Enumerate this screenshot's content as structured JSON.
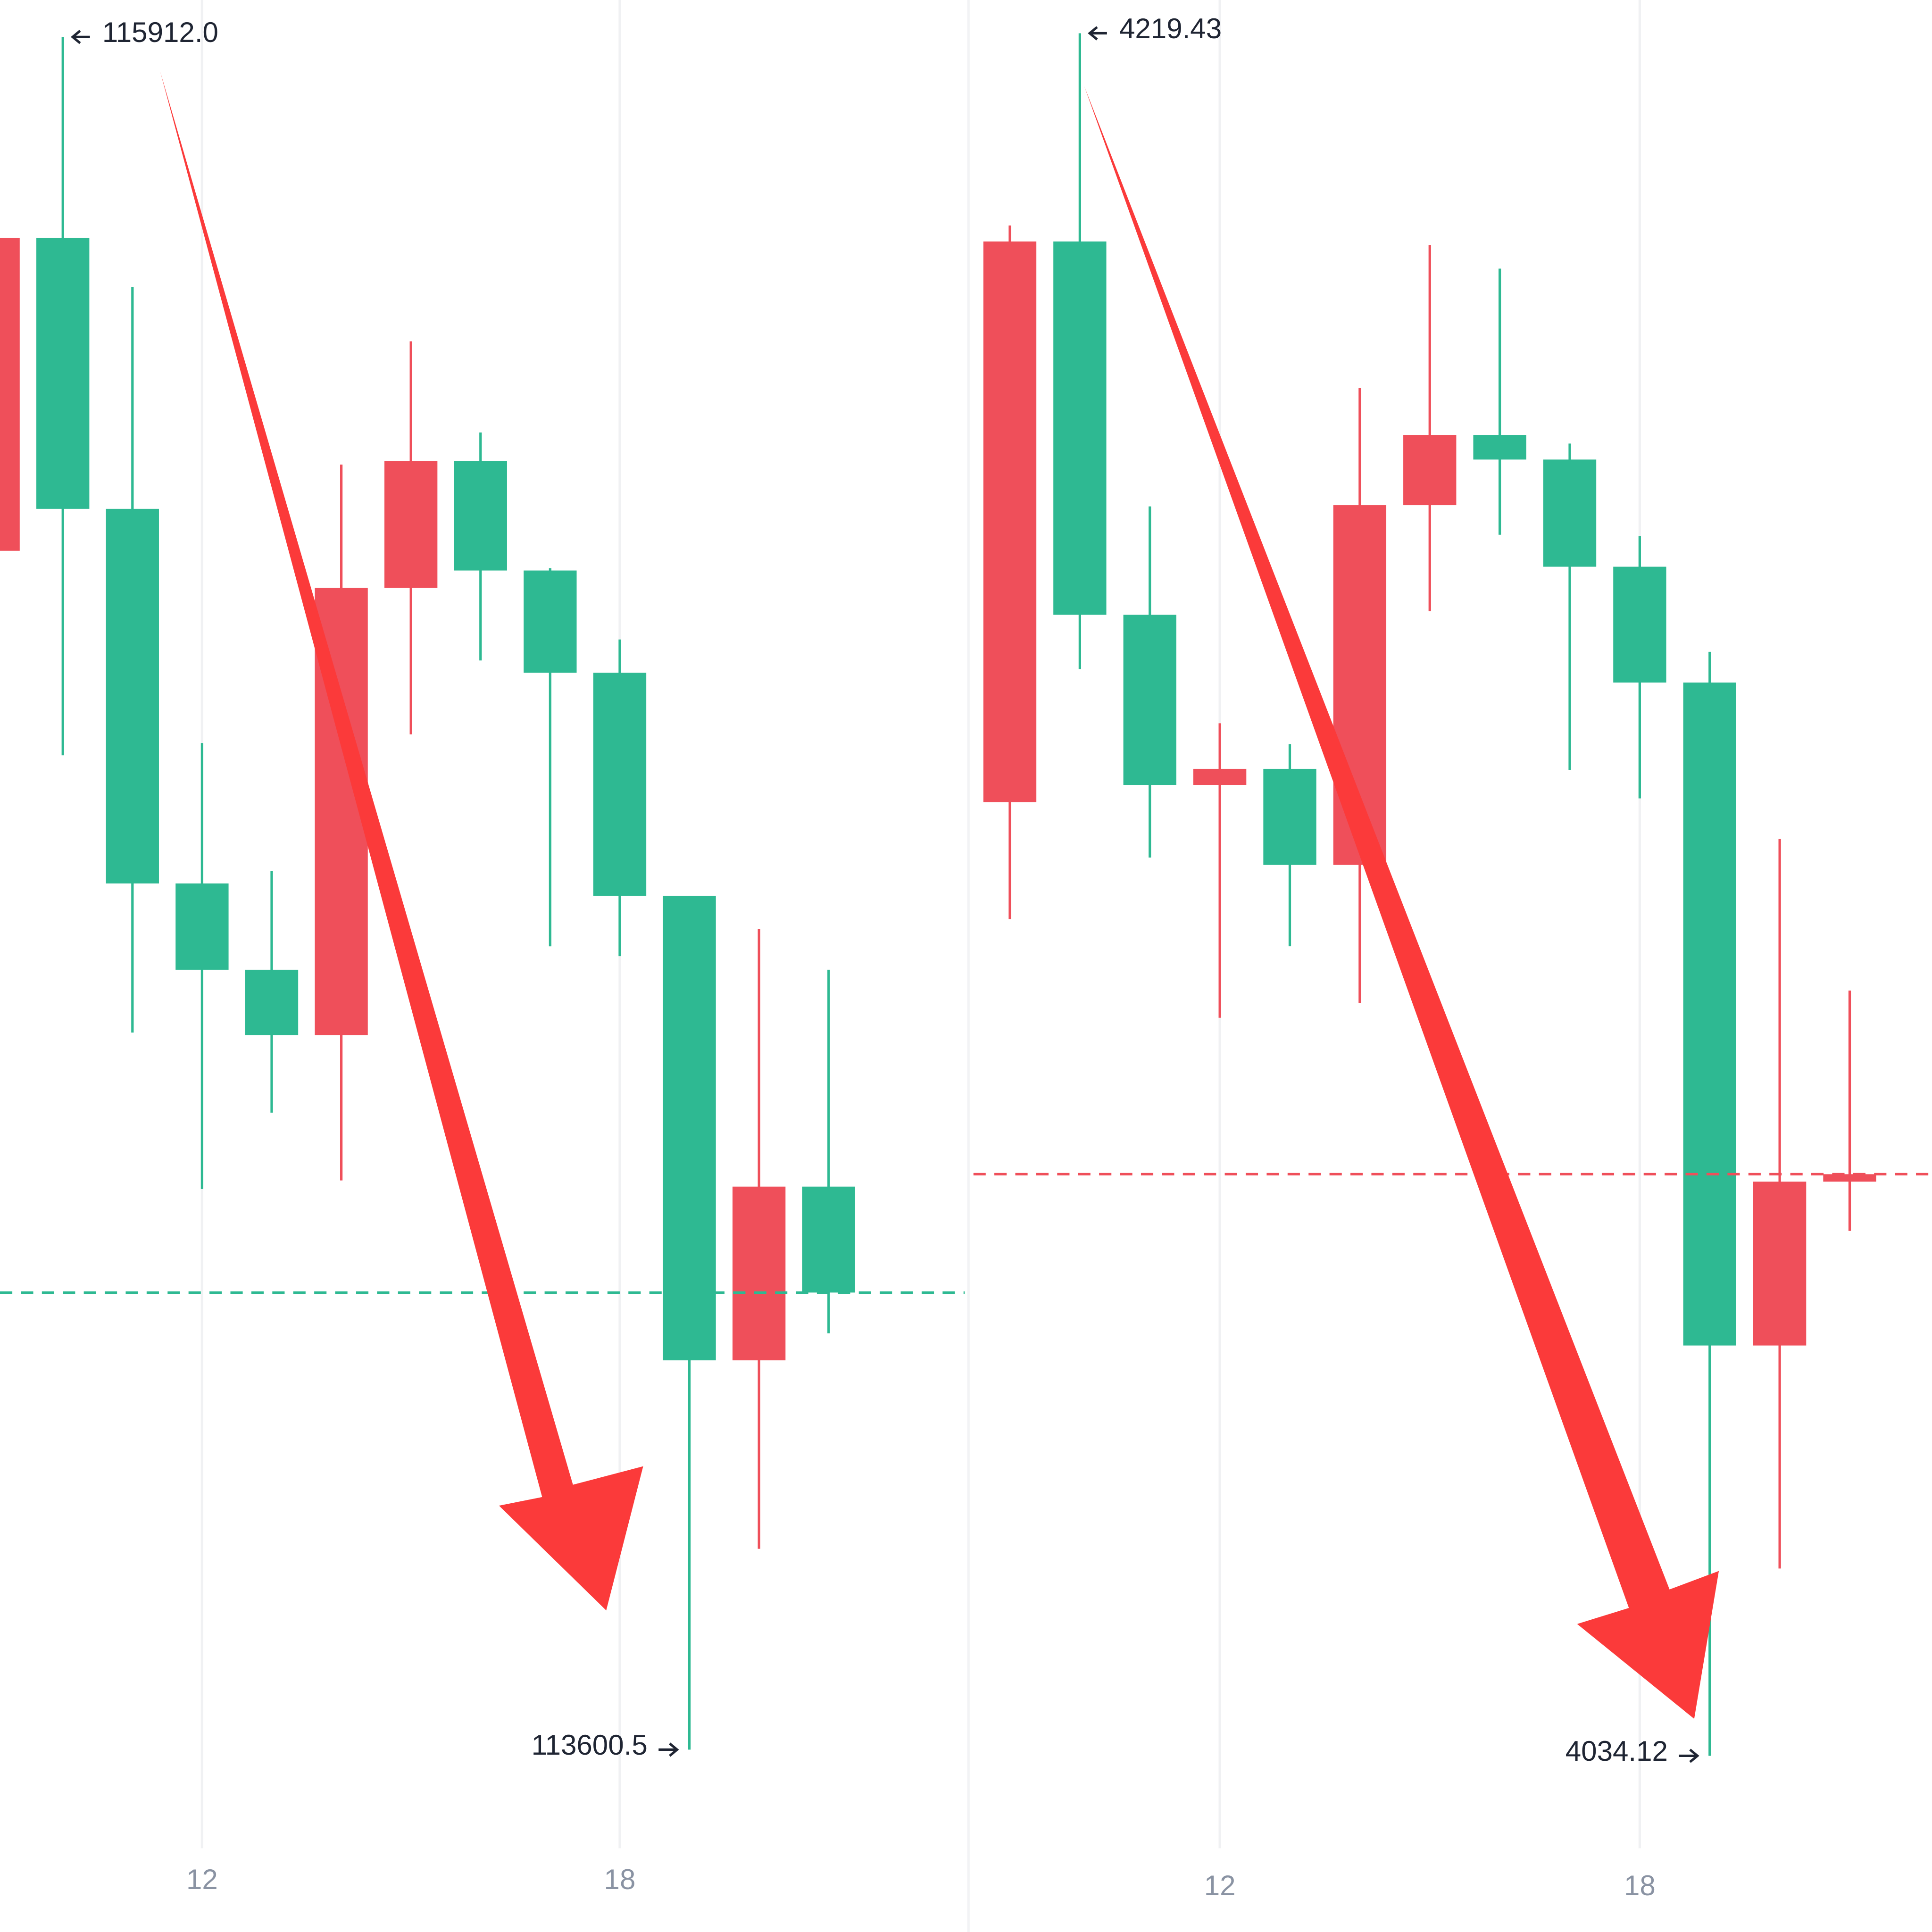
{
  "chart_data": [
    {
      "type": "candlestick",
      "categories": [
        null,
        null,
        null,
        "12",
        null,
        null,
        null,
        null,
        null,
        "18",
        null,
        null,
        null
      ],
      "open": [
        115218.5,
        115640.9,
        115275.1,
        114769.5,
        114653.1,
        114565.0,
        115168.6,
        115339.9,
        115191.9,
        115053.9,
        114752.9,
        114125.9,
        114360.4
      ],
      "high": [
        115640.9,
        115912.0,
        115574.4,
        114959.1,
        114786.1,
        115334.9,
        115501.2,
        115378.2,
        115195.2,
        115098.8,
        114752.9,
        114708.0,
        114653.1
      ],
      "low": [
        115218.5,
        114942.5,
        114568.3,
        114357.1,
        114460.2,
        114368.7,
        114970.7,
        115070.5,
        114684.7,
        114671.4,
        113600.5,
        113871.5,
        114162.5
      ],
      "close": [
        115640.9,
        115275.1,
        114769.5,
        114653.1,
        114565.0,
        115168.6,
        115339.9,
        115191.9,
        115053.9,
        114752.9,
        114125.9,
        114360.4,
        114217.4
      ],
      "up_color": "#ef4f5a",
      "down_color": "#2eb992",
      "max_label": "115912.0",
      "min_label": "113600.5"
    },
    {
      "type": "candlestick",
      "categories": [
        null,
        null,
        null,
        "12",
        null,
        null,
        null,
        null,
        null,
        "18",
        null,
        null,
        null
      ],
      "open": [
        4136.72,
        4197.03,
        4156.87,
        4138.57,
        4140.3,
        4129.96,
        4168.66,
        4176.22,
        4173.57,
        4162.04,
        4149.58,
        4078.26,
        4095.89
      ],
      "high": [
        4198.75,
        4219.43,
        4168.53,
        4145.2,
        4142.95,
        4181.26,
        4196.63,
        4194.11,
        4175.29,
        4165.35,
        4152.89,
        4132.74,
        4116.44
      ],
      "low": [
        4124.13,
        4151.03,
        4130.75,
        4113.52,
        4121.21,
        4115.11,
        4157.26,
        4165.48,
        4140.17,
        4137.12,
        4034.12,
        4054.27,
        4090.59
      ],
      "close": [
        4197.03,
        4156.87,
        4138.57,
        4140.3,
        4129.96,
        4168.66,
        4176.22,
        4173.57,
        4162.04,
        4149.58,
        4078.26,
        4095.89,
        4096.69
      ],
      "up_color": "#ef4f5a",
      "down_color": "#2eb992",
      "max_label": "4219.43",
      "min_label": "4034.12"
    }
  ]
}
